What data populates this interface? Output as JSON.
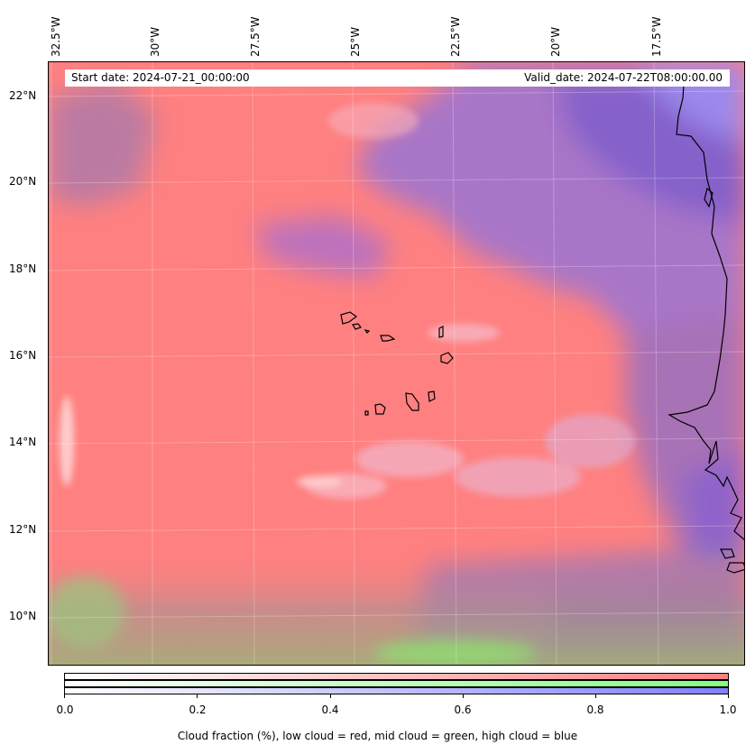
{
  "map": {
    "start_date_label": "Start date: 2024-07-21_00:00:00",
    "valid_date_label": "Valid_date: 2024-07-22T08:00:00.00",
    "longitude_labels": [
      "32.5°W",
      "30°W",
      "27.5°W",
      "25°W",
      "22.5°W",
      "20°W",
      "17.5°W"
    ],
    "latitude_labels": [
      "22°N",
      "20°N",
      "18°N",
      "16°N",
      "14°N",
      "12°N",
      "10°N"
    ],
    "colors": {
      "low_cloud": "#ff8080",
      "mid_cloud": "#80ff80",
      "high_cloud": "#8080ff"
    }
  },
  "colorbar": {
    "tick_labels": [
      "0.0",
      "0.2",
      "0.4",
      "0.6",
      "0.8",
      "1.0"
    ],
    "caption": "Cloud fraction (%), low cloud = red, mid cloud = green, high cloud = blue"
  }
}
